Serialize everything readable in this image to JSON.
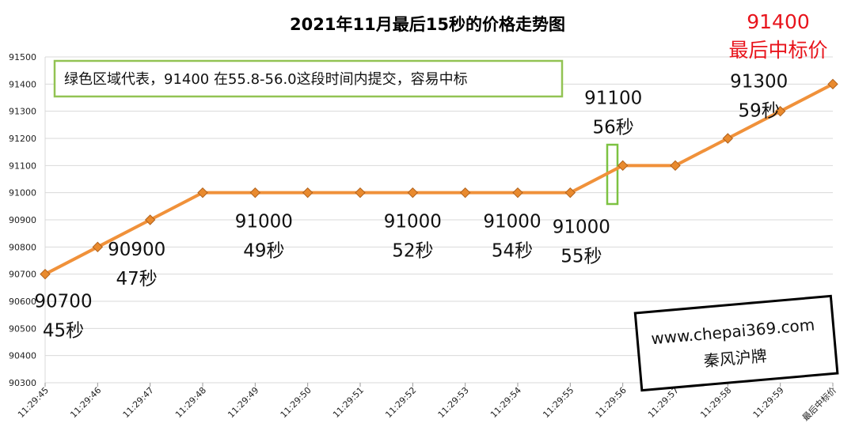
{
  "title": "2021年11月最后15秒的价格走势图",
  "final_price": {
    "value": "91400",
    "label": "最后中标价",
    "color": "#e8141c"
  },
  "note": "绿色区域代表，91400  在55.8-56.0这段时间内提交，容易中标",
  "watermark": {
    "line1": "www.chepai369.com",
    "line2": "秦风沪牌"
  },
  "colors": {
    "line": "#f0913a",
    "marker": "#e98a2e",
    "marker_edge": "#b0601a",
    "grid": "#d9d9d9",
    "note_border": "#92c353",
    "highlight": "#7dc242"
  },
  "chart_data": {
    "type": "line",
    "title": "2021年11月最后15秒的价格走势图",
    "categories": [
      "11:29:45",
      "11:29:46",
      "11:29:47",
      "11:29:48",
      "11:29:49",
      "11:29:50",
      "11:29:51",
      "11:29:52",
      "11:29:53",
      "11:29:54",
      "11:29:55",
      "11:29:56",
      "11:29:57",
      "11:29:58",
      "11:29:59",
      "最后中标价"
    ],
    "series": [
      {
        "values": [
          90700,
          90800,
          90900,
          91000,
          91000,
          91000,
          91000,
          91000,
          91000,
          91000,
          91000,
          91100,
          91100,
          91200,
          91300,
          91400
        ]
      }
    ],
    "ylim": [
      90300,
      91500
    ],
    "yticks": [
      90300,
      90400,
      90500,
      90600,
      90700,
      90800,
      90900,
      91000,
      91100,
      91200,
      91300,
      91400,
      91500
    ],
    "grid": true,
    "annotations": [
      {
        "index": 0,
        "price": "90700",
        "time": "45秒"
      },
      {
        "index": 2,
        "price": "90900",
        "time": "47秒"
      },
      {
        "index": 4,
        "price": "91000",
        "time": "49秒"
      },
      {
        "index": 7,
        "price": "91000",
        "time": "52秒"
      },
      {
        "index": 9,
        "price": "91000",
        "time": "54秒"
      },
      {
        "index": 10,
        "price": "91000",
        "time": "55秒"
      },
      {
        "index": 11,
        "price": "91100",
        "time": "56秒"
      },
      {
        "index": 14,
        "price": "91300",
        "time": "59秒"
      }
    ]
  }
}
